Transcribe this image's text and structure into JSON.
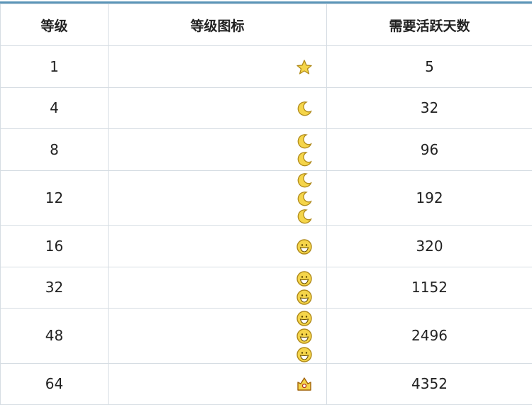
{
  "headers": [
    "等级",
    "等级图标",
    "需要活跃天数"
  ],
  "rows": [
    {
      "level": "1",
      "icons": [
        "star-icon"
      ],
      "days": "5"
    },
    {
      "level": "4",
      "icons": [
        "moon-icon"
      ],
      "days": "32"
    },
    {
      "level": "8",
      "icons": [
        "moon-icon",
        "moon-icon"
      ],
      "days": "96"
    },
    {
      "level": "12",
      "icons": [
        "moon-icon",
        "moon-icon",
        "moon-icon"
      ],
      "days": "192"
    },
    {
      "level": "16",
      "icons": [
        "sun-icon"
      ],
      "days": "320"
    },
    {
      "level": "32",
      "icons": [
        "sun-icon",
        "sun-icon"
      ],
      "days": "1152"
    },
    {
      "level": "48",
      "icons": [
        "sun-icon",
        "sun-icon",
        "sun-icon"
      ],
      "days": "2496"
    },
    {
      "level": "64",
      "icons": [
        "crown-icon"
      ],
      "days": "4352"
    }
  ],
  "colors": {
    "border": "#d6dde3",
    "top_line": "#5b95b8",
    "icon_fill": "#f5d54a",
    "icon_stroke": "#b08a1a"
  }
}
